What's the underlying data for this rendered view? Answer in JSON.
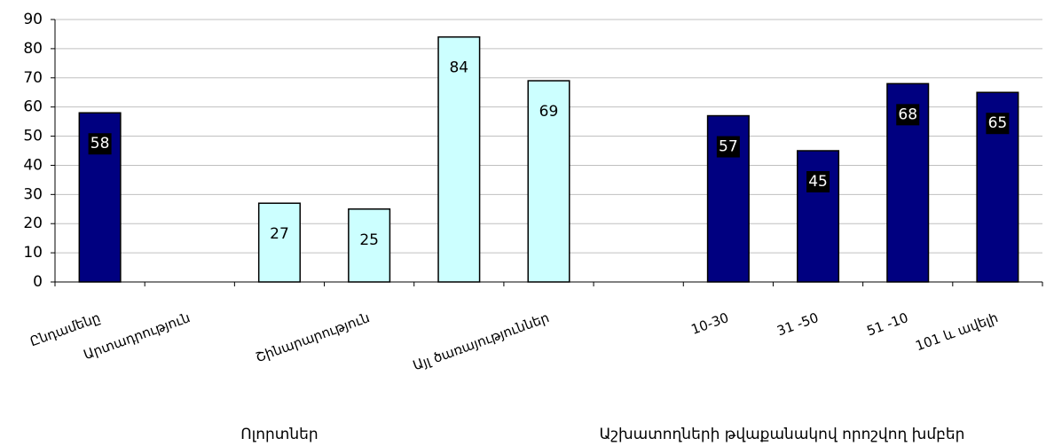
{
  "chart_data": {
    "type": "bar",
    "categories": [
      "Ընդամենը",
      "Արտադրություն",
      null,
      "Շինարարություն",
      null,
      "Այլ ծառայություններ",
      null,
      "10-30",
      "31 -50",
      "51 -10",
      "101 և ավելի"
    ],
    "values": [
      58,
      null,
      27,
      25,
      84,
      69,
      null,
      57,
      45,
      68,
      65
    ],
    "colors": [
      "#000080",
      "#000080",
      "#ccffff",
      "#ccffff",
      "#ccffff",
      "#ccffff",
      "#000080",
      "#000080",
      "#000080",
      "#000080",
      "#000080"
    ],
    "group_labels": [
      "Ոլորտներ",
      "Աշխատողների թվաքանակով որոշվող խմբեր"
    ],
    "ylim": [
      0,
      90
    ],
    "yticks": [
      0,
      10,
      20,
      30,
      40,
      50,
      60,
      70,
      80,
      90
    ],
    "grid": true
  }
}
